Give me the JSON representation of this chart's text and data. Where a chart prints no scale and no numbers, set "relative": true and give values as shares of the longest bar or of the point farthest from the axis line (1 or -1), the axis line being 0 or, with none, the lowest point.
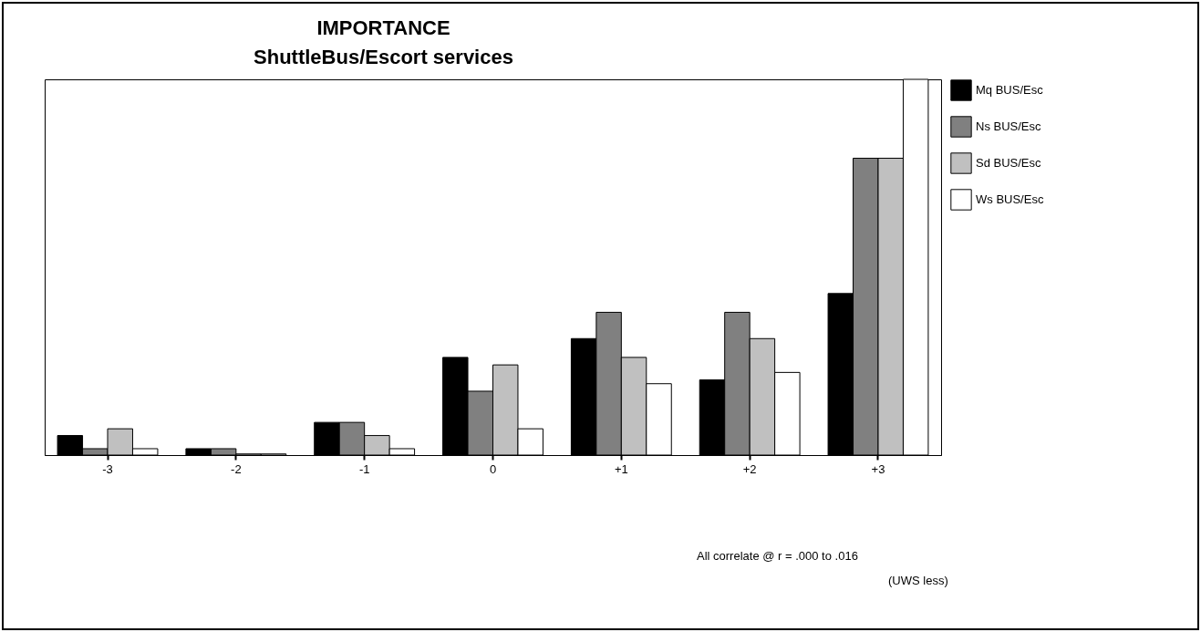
{
  "chart_data": {
    "type": "bar",
    "title": "IMPORTANCE",
    "subtitle": "ShuttleBus/Escort services",
    "relative": true,
    "legend": "right",
    "categories": [
      "-3",
      "-2",
      "-1",
      "0",
      "+1",
      "+2",
      "+3"
    ],
    "series": [
      {
        "name": "Mq BUS/Esc",
        "color": "#000000",
        "values": [
          0.052,
          0.017,
          0.087,
          0.26,
          0.31,
          0.2,
          0.43
        ]
      },
      {
        "name": "Ns BUS/Esc",
        "color": "#808080",
        "values": [
          0.017,
          0.017,
          0.087,
          0.17,
          0.38,
          0.38,
          0.79
        ]
      },
      {
        "name": "Sd BUS/Esc",
        "color": "#c0c0c0",
        "values": [
          0.07,
          0.003,
          0.052,
          0.24,
          0.26,
          0.31,
          0.79
        ]
      },
      {
        "name": "Ws BUS/Esc",
        "color": "#ffffff",
        "values": [
          0.017,
          0.003,
          0.017,
          0.07,
          0.19,
          0.22,
          1
        ]
      }
    ],
    "annotations": [
      "All correlate @ r = .000 to .016",
      "(UWS less)"
    ]
  }
}
